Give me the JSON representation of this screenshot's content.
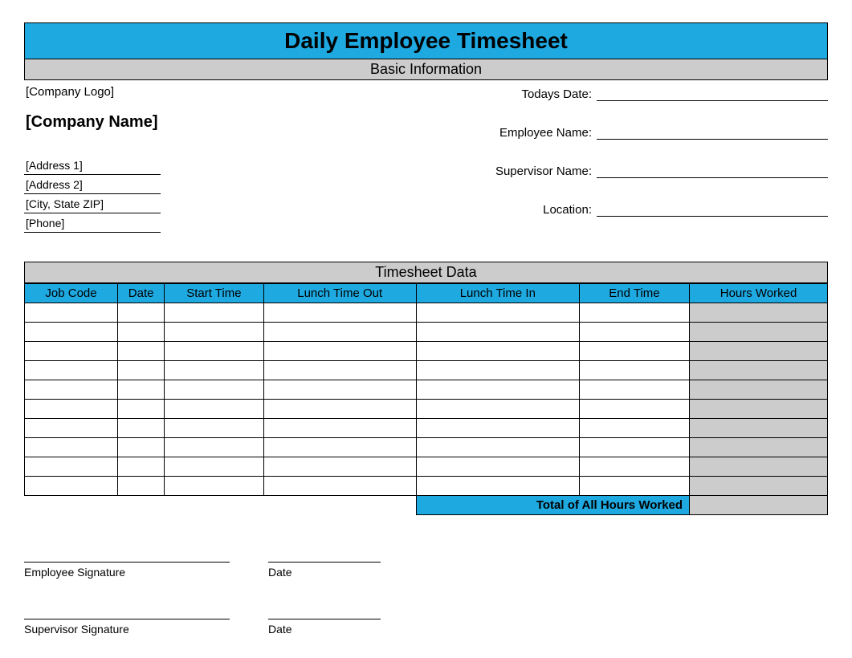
{
  "title": "Daily Employee Timesheet",
  "sections": {
    "basic_info": "Basic Information",
    "timesheet_data": "Timesheet Data"
  },
  "company": {
    "logo_placeholder": "[Company Logo]",
    "name_placeholder": "[Company Name]",
    "address1": "[Address 1]",
    "address2": "[Address 2]",
    "city_state_zip": "[City, State ZIP]",
    "phone": "[Phone]"
  },
  "info_labels": {
    "todays_date": "Todays Date:",
    "employee_name": "Employee Name:",
    "supervisor_name": "Supervisor Name:",
    "location": "Location:"
  },
  "timesheet": {
    "columns": [
      "Job Code",
      "Date",
      "Start Time",
      "Lunch Time Out",
      "Lunch Time In",
      "End Time",
      "Hours Worked"
    ],
    "row_count": 10,
    "hours_col_bg": "#cccccc",
    "header_bg": "#1ea9e1",
    "total_label": "Total of All Hours Worked"
  },
  "signatures": {
    "employee": "Employee Signature",
    "supervisor": "Supervisor Signature",
    "date": "Date"
  },
  "colors": {
    "accent": "#1ea9e1",
    "grey": "#cccccc",
    "border": "#000000",
    "background": "#ffffff"
  }
}
